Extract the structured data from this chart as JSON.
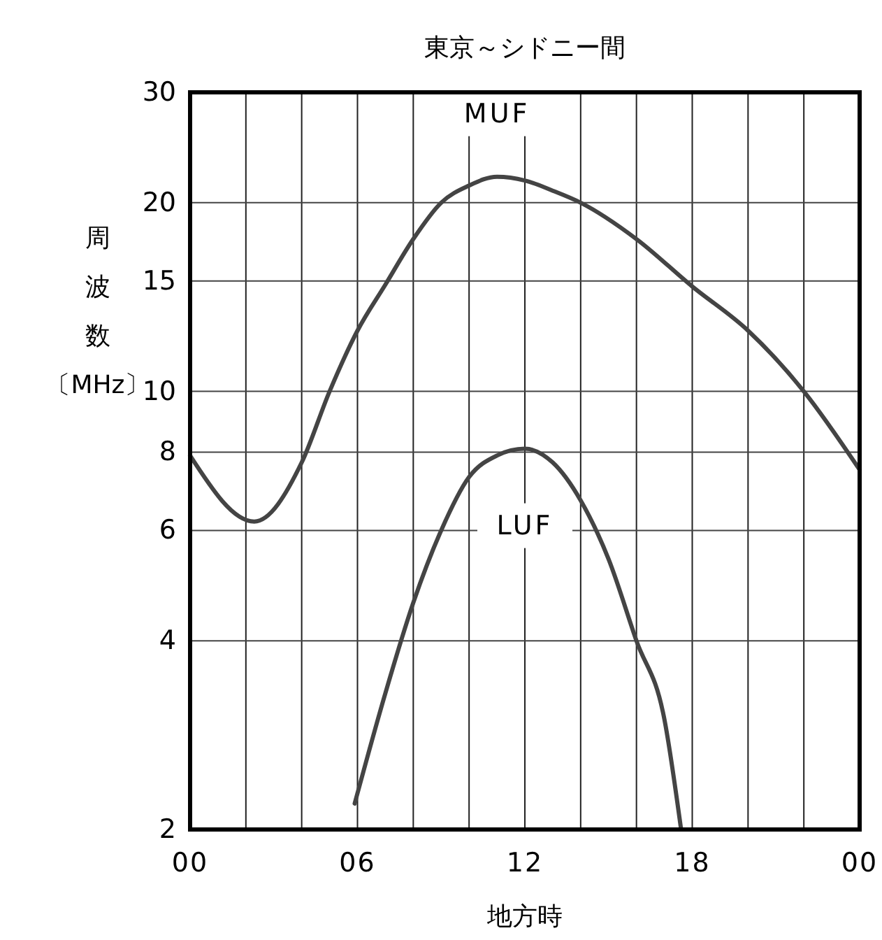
{
  "chart_data": {
    "type": "line",
    "title": "東京～シドニー間",
    "xlabel": "地方時",
    "ylabel": "周波数〔MHz〕",
    "log": true,
    "grid": true,
    "marker": "none",
    "line_style": "solid",
    "xlim": [
      0,
      24
    ],
    "xticks": [
      {
        "value": 0,
        "label": "00"
      },
      {
        "value": 2,
        "label": null
      },
      {
        "value": 4,
        "label": null
      },
      {
        "value": 6,
        "label": "06"
      },
      {
        "value": 8,
        "label": null
      },
      {
        "value": 10,
        "label": null
      },
      {
        "value": 12,
        "label": "12"
      },
      {
        "value": 14,
        "label": null
      },
      {
        "value": 16,
        "label": null
      },
      {
        "value": 18,
        "label": "18"
      },
      {
        "value": 20,
        "label": null
      },
      {
        "value": 22,
        "label": null
      },
      {
        "value": 24,
        "label": "00"
      }
    ],
    "ylim": [
      2,
      30
    ],
    "yticks": [
      2,
      4,
      6,
      8,
      10,
      15,
      20,
      30
    ],
    "series": [
      {
        "name": "MUF",
        "color": "#444444",
        "x": [
          0,
          2.3,
          4,
          5,
          6,
          7,
          8,
          9,
          10,
          11,
          12,
          13,
          14,
          16,
          18,
          20,
          22,
          24
        ],
        "values": [
          7.9,
          6.2,
          7.7,
          10,
          12.5,
          14.8,
          17.5,
          20,
          21.3,
          22,
          21.7,
          20.9,
          20,
          17.5,
          14.7,
          12.5,
          10,
          7.5
        ]
      },
      {
        "name": "LUF",
        "color": "#444444",
        "x": [
          5.9,
          7,
          8,
          9,
          10,
          11,
          12,
          13,
          14,
          15,
          16,
          17,
          17.6
        ],
        "values": [
          2.2,
          3.3,
          4.6,
          6,
          7.3,
          7.9,
          8.1,
          7.7,
          6.7,
          5.4,
          4,
          3,
          2
        ]
      }
    ]
  }
}
